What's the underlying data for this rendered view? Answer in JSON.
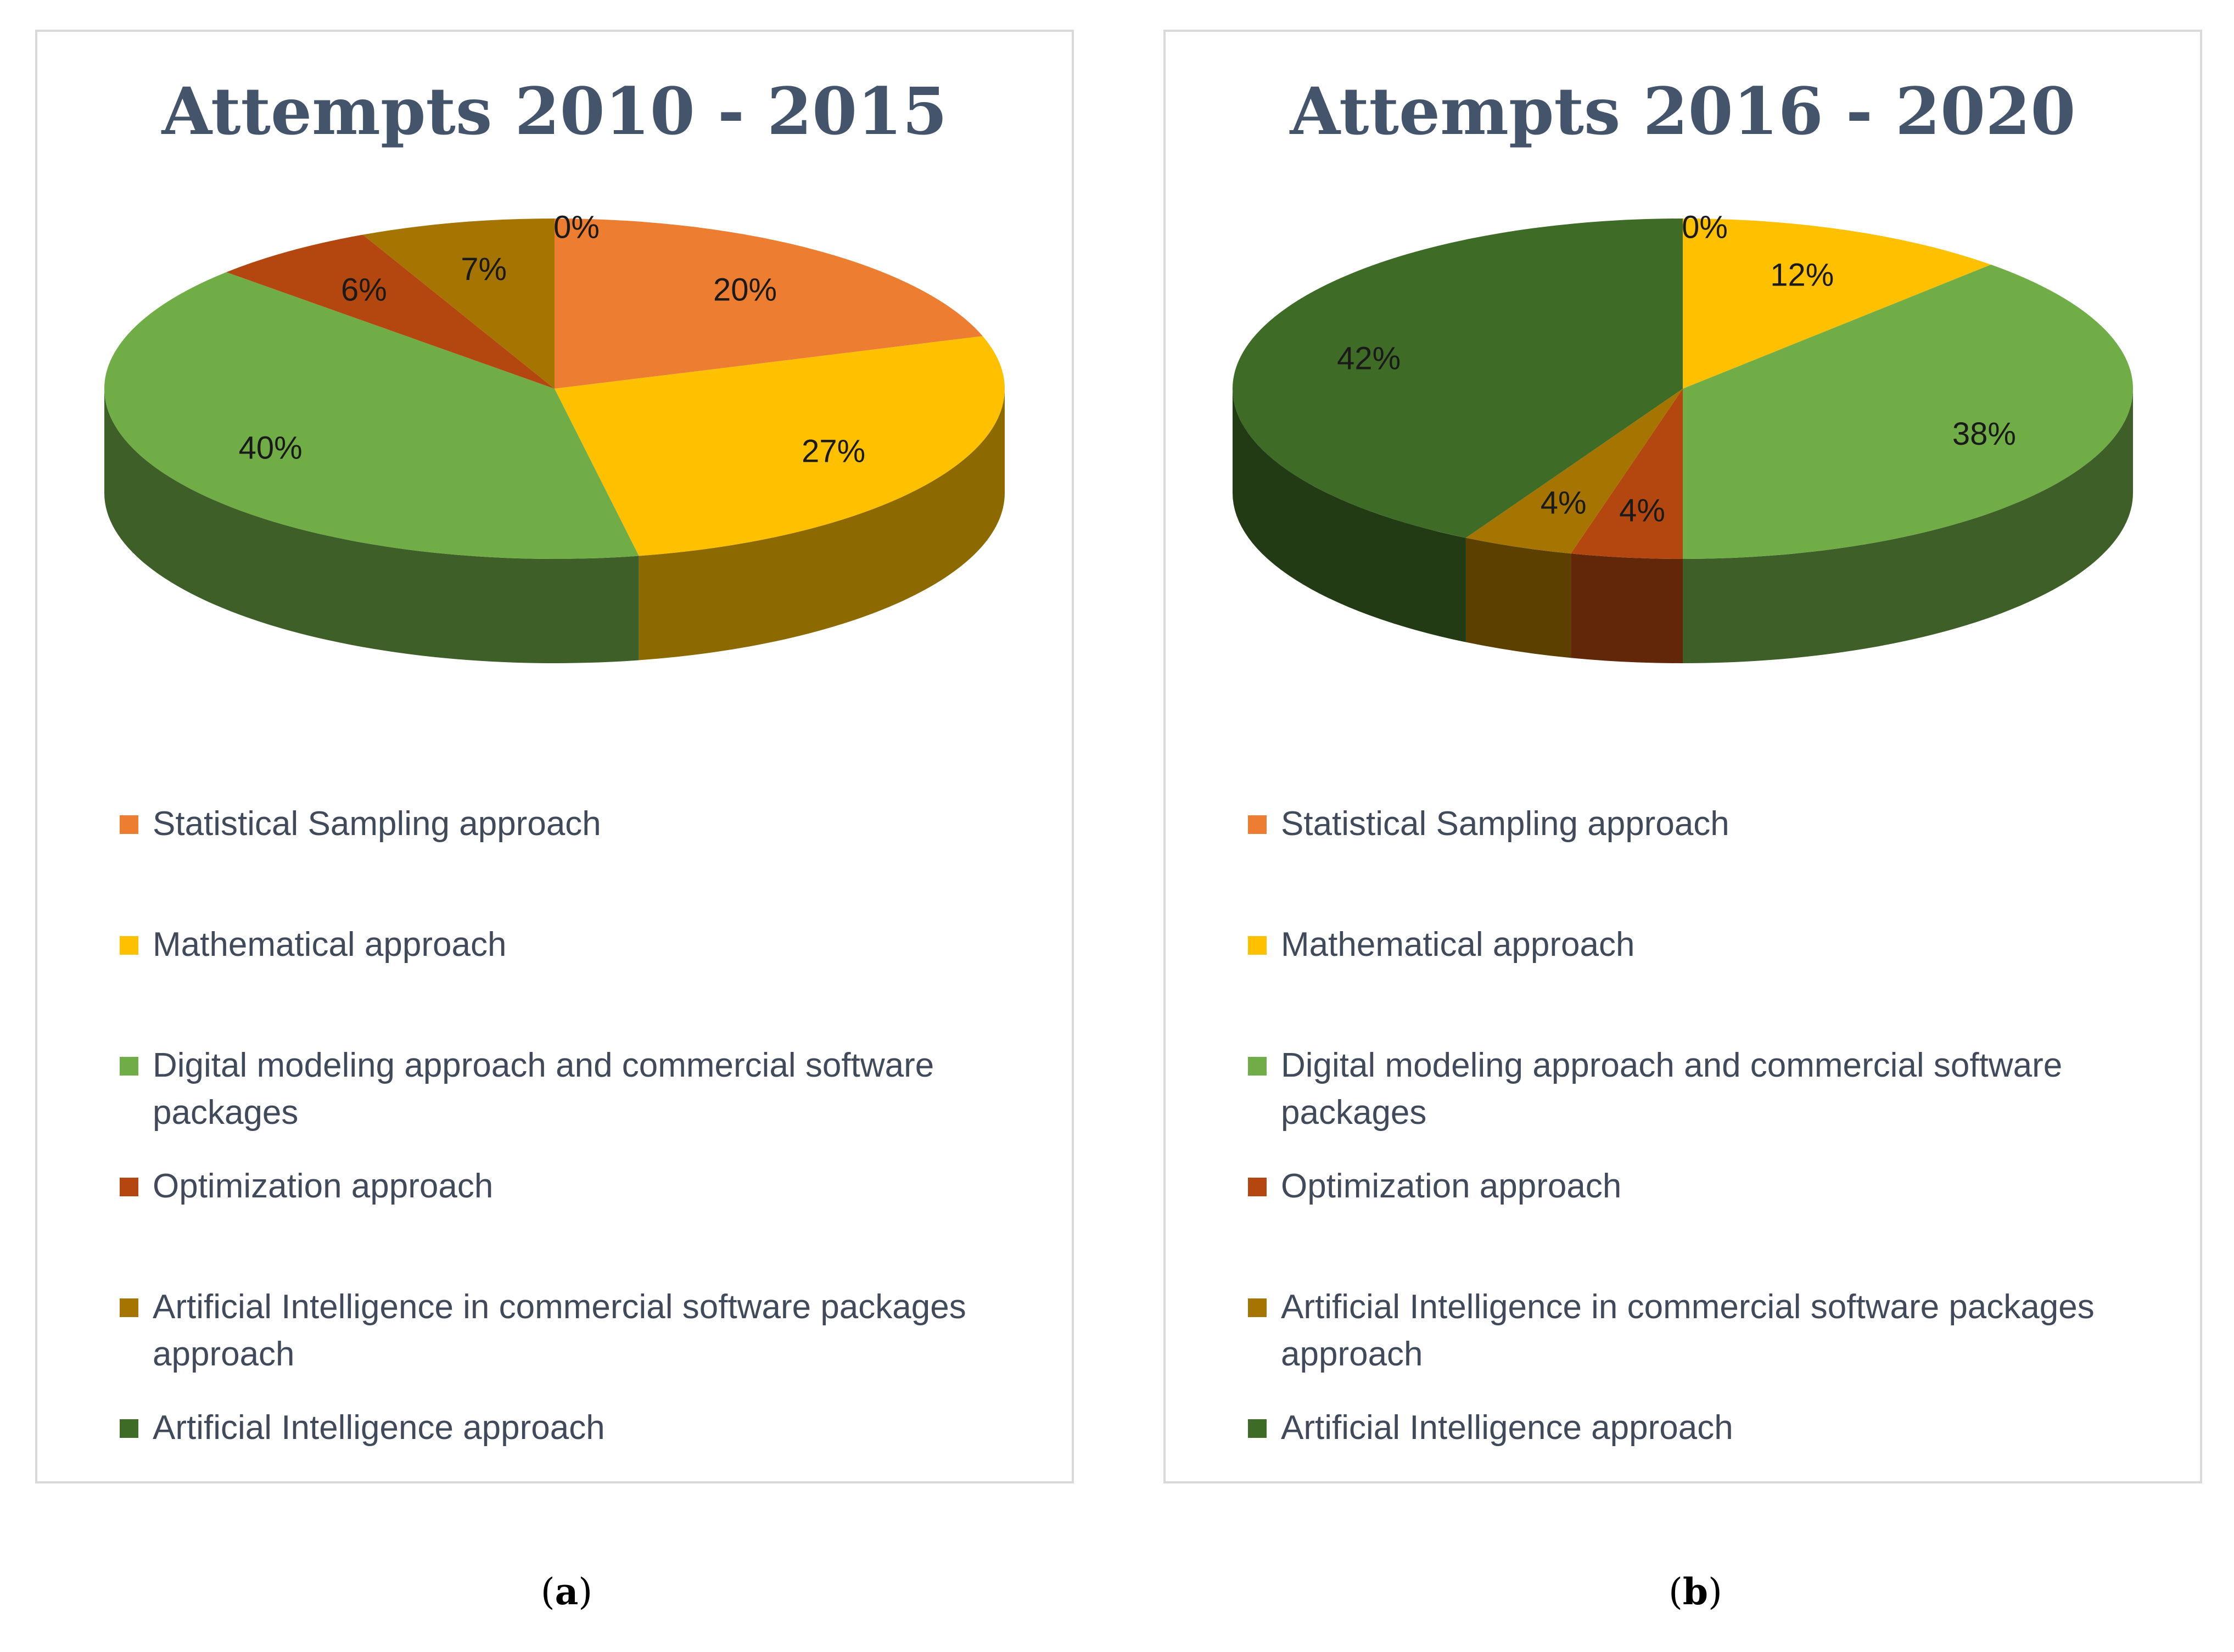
{
  "colors": {
    "Statistical Sampling approach": "#ED7D31",
    "Mathematical approach": "#FFC000",
    "Digital modeling approach and commercial software packages": "#70AD47",
    "Optimization approach": "#B3470F",
    "Artificial Intelligence in commercial software packages approach": "#A67400",
    "Artificial Intelligence approach": "#3E6B26"
  },
  "legend_labels": [
    "Statistical Sampling approach",
    "Mathematical approach",
    "Digital modeling approach and commercial software packages",
    "Optimization approach",
    "Artificial Intelligence in commercial software packages approach",
    "Artificial Intelligence approach"
  ],
  "chart_data": [
    {
      "type": "pie",
      "title": "Attempts 2010 - 2015",
      "caption_letter": "a",
      "categories": [
        "Statistical Sampling approach",
        "Mathematical approach",
        "Digital modeling approach and commercial software packages",
        "Optimization approach",
        "Artificial Intelligence in commercial software packages approach",
        "Artificial Intelligence approach"
      ],
      "values": [
        20,
        27,
        40,
        6,
        7,
        0
      ],
      "data_labels": [
        "20%",
        "27%",
        "40%",
        "6%",
        "7%",
        "0%"
      ],
      "legend_position": "bottom",
      "style": "3d"
    },
    {
      "type": "pie",
      "title": "Attempts 2016 - 2020",
      "caption_letter": "b",
      "categories": [
        "Statistical Sampling approach",
        "Mathematical approach",
        "Digital modeling approach and commercial software packages",
        "Optimization approach",
        "Artificial Intelligence in commercial software packages approach",
        "Artificial Intelligence approach"
      ],
      "values": [
        0,
        12,
        38,
        4,
        4,
        42
      ],
      "data_labels": [
        "0%",
        "12%",
        "38%",
        "4%",
        "4%",
        "42%"
      ],
      "legend_position": "bottom",
      "style": "3d"
    }
  ]
}
